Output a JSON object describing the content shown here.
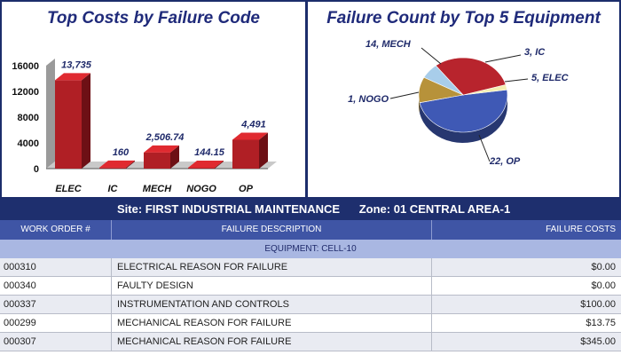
{
  "bar_chart": {
    "title": "Top Costs by Failure Code",
    "color": "#b01f25",
    "chart_data": {
      "type": "bar",
      "categories": [
        "ELEC",
        "IC",
        "MECH",
        "NOGO",
        "OP"
      ],
      "values": [
        13735,
        160,
        2506.74,
        144.15,
        4491
      ],
      "value_labels": [
        "13,735",
        "160",
        "2,506.74",
        "144.15",
        "4,491"
      ],
      "y_ticks": [
        0,
        4000,
        8000,
        12000,
        16000
      ],
      "y_tick_labels": [
        "0",
        "4000",
        "8000",
        "12000",
        "16000"
      ],
      "ylim": [
        0,
        16000
      ],
      "title": "Top Costs by Failure Code"
    }
  },
  "pie_chart": {
    "title": "Failure Count by Top 5 Equipment",
    "chart_data": {
      "type": "pie",
      "slices": [
        {
          "label": "22, OP",
          "value": 22,
          "color": "#3f59b5"
        },
        {
          "label": "1, NOGO",
          "value": 1,
          "color": "#f3eeb2"
        },
        {
          "label": "14, MECH",
          "value": 14,
          "color": "#b8242d"
        },
        {
          "label": "3, IC",
          "value": 3,
          "color": "#a8cdea"
        },
        {
          "label": "5, ELEC",
          "value": 5,
          "color": "#b7923a"
        }
      ],
      "title": "Failure Count by Top 5 Equipment"
    }
  },
  "report": {
    "site_label": "Site: FIRST INDUSTRIAL MAINTENANCE",
    "zone_label": "Zone: 01 CENTRAL AREA-1",
    "columns": {
      "work_order": "WORK ORDER #",
      "description": "FAILURE DESCRIPTION",
      "cost": "FAILURE COSTS"
    },
    "group_label": "EQUIPMENT: CELL-10",
    "rows": [
      {
        "wo": "000310",
        "desc": "ELECTRICAL REASON FOR FAILURE",
        "cost": "$0.00"
      },
      {
        "wo": "000340",
        "desc": "FAULTY DESIGN",
        "cost": "$0.00"
      },
      {
        "wo": "000337",
        "desc": "INSTRUMENTATION AND CONTROLS",
        "cost": "$100.00"
      },
      {
        "wo": "000299",
        "desc": "MECHANICAL REASON FOR FAILURE",
        "cost": "$13.75"
      },
      {
        "wo": "000307",
        "desc": "MECHANICAL REASON FOR FAILURE",
        "cost": "$345.00"
      }
    ]
  }
}
